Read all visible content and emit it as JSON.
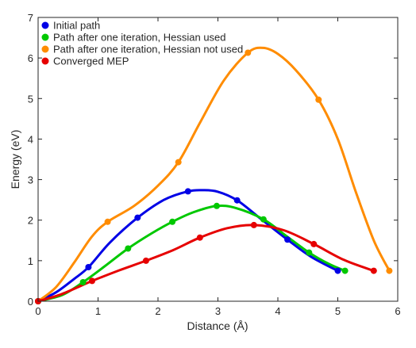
{
  "chart_data": {
    "type": "line",
    "title": "",
    "xlabel": "Distance (Å)",
    "ylabel": "Energy (eV)",
    "xlim": [
      0,
      6
    ],
    "ylim": [
      0,
      7
    ],
    "xticks": [
      "0",
      "1",
      "2",
      "3",
      "4",
      "5",
      "6"
    ],
    "yticks": [
      "0",
      "1",
      "2",
      "3",
      "4",
      "5",
      "6",
      "7"
    ],
    "grid": false,
    "legend_position": "top-left",
    "series": [
      {
        "name": "Initial path",
        "color": "#0000e6",
        "points": [
          [
            0,
            0
          ],
          [
            0.84,
            0.84
          ],
          [
            1.66,
            2.06
          ],
          [
            2.5,
            2.71
          ],
          [
            3.32,
            2.49
          ],
          [
            4.16,
            1.52
          ],
          [
            5.0,
            0.75
          ]
        ],
        "curve": [
          [
            0,
            0
          ],
          [
            0.3,
            0.22
          ],
          [
            0.6,
            0.55
          ],
          [
            0.84,
            0.84
          ],
          [
            1.2,
            1.45
          ],
          [
            1.66,
            2.06
          ],
          [
            2.1,
            2.5
          ],
          [
            2.5,
            2.71
          ],
          [
            2.75,
            2.74
          ],
          [
            3.0,
            2.7
          ],
          [
            3.32,
            2.49
          ],
          [
            3.7,
            2.05
          ],
          [
            4.16,
            1.52
          ],
          [
            4.55,
            1.1
          ],
          [
            5.0,
            0.75
          ]
        ]
      },
      {
        "name": "Path after one iteration, Hessian used",
        "color": "#00c800",
        "points": [
          [
            0,
            0
          ],
          [
            0.75,
            0.47
          ],
          [
            1.5,
            1.3
          ],
          [
            2.24,
            1.96
          ],
          [
            2.98,
            2.35
          ],
          [
            3.76,
            2.02
          ],
          [
            4.52,
            1.2
          ],
          [
            5.12,
            0.75
          ]
        ],
        "curve": [
          [
            0,
            0
          ],
          [
            0.4,
            0.15
          ],
          [
            0.75,
            0.47
          ],
          [
            1.1,
            0.85
          ],
          [
            1.5,
            1.3
          ],
          [
            1.9,
            1.68
          ],
          [
            2.24,
            1.96
          ],
          [
            2.6,
            2.2
          ],
          [
            2.98,
            2.35
          ],
          [
            3.3,
            2.3
          ],
          [
            3.76,
            2.02
          ],
          [
            4.15,
            1.6
          ],
          [
            4.52,
            1.2
          ],
          [
            4.85,
            0.92
          ],
          [
            5.12,
            0.75
          ]
        ]
      },
      {
        "name": "Path after one iteration, Hessian not used",
        "color": "#ff8c00",
        "points": [
          [
            0,
            0
          ],
          [
            1.16,
            1.96
          ],
          [
            2.34,
            3.43
          ],
          [
            3.5,
            6.13
          ],
          [
            4.68,
            4.97
          ],
          [
            5.86,
            0.75
          ]
        ],
        "curve": [
          [
            0,
            0
          ],
          [
            0.3,
            0.35
          ],
          [
            0.6,
            0.95
          ],
          [
            0.9,
            1.6
          ],
          [
            1.16,
            1.96
          ],
          [
            1.6,
            2.35
          ],
          [
            2.0,
            2.85
          ],
          [
            2.34,
            3.43
          ],
          [
            2.7,
            4.4
          ],
          [
            3.1,
            5.45
          ],
          [
            3.5,
            6.13
          ],
          [
            3.75,
            6.25
          ],
          [
            4.0,
            6.1
          ],
          [
            4.3,
            5.7
          ],
          [
            4.68,
            4.97
          ],
          [
            5.0,
            4.0
          ],
          [
            5.3,
            2.7
          ],
          [
            5.6,
            1.5
          ],
          [
            5.86,
            0.75
          ]
        ]
      },
      {
        "name": "Converged MEP",
        "color": "#e60000",
        "points": [
          [
            0,
            0
          ],
          [
            0.9,
            0.5
          ],
          [
            1.8,
            1.0
          ],
          [
            2.7,
            1.57
          ],
          [
            3.6,
            1.88
          ],
          [
            4.6,
            1.41
          ],
          [
            5.6,
            0.75
          ]
        ],
        "curve": [
          [
            0,
            0
          ],
          [
            0.4,
            0.18
          ],
          [
            0.9,
            0.5
          ],
          [
            1.35,
            0.76
          ],
          [
            1.8,
            1.0
          ],
          [
            2.25,
            1.26
          ],
          [
            2.7,
            1.57
          ],
          [
            3.15,
            1.8
          ],
          [
            3.6,
            1.88
          ],
          [
            4.1,
            1.75
          ],
          [
            4.6,
            1.41
          ],
          [
            5.1,
            1.02
          ],
          [
            5.6,
            0.75
          ]
        ]
      }
    ]
  }
}
